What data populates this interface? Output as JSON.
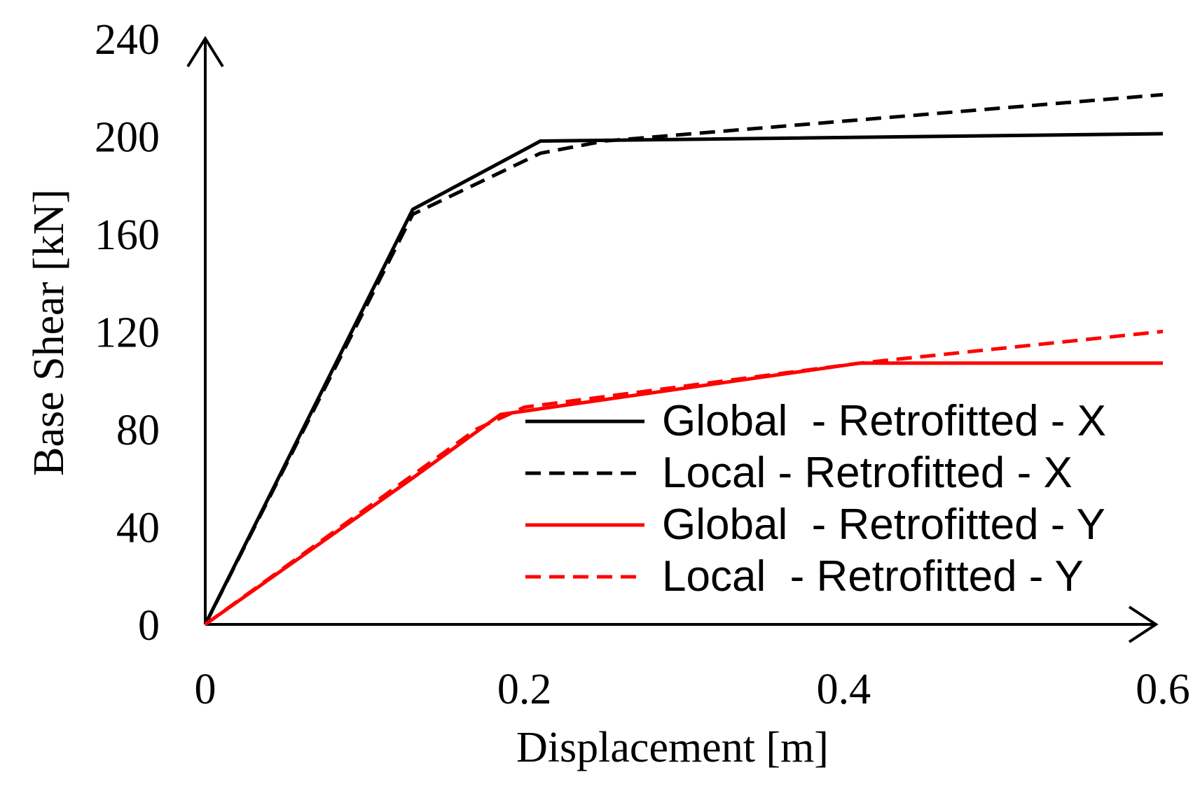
{
  "chart_data": {
    "type": "line",
    "xlabel": "Displacement [m]",
    "ylabel": "Base Shear [kN]",
    "xlim": [
      0,
      0.6
    ],
    "ylim": [
      0,
      240
    ],
    "xticks": [
      "0",
      "0.2",
      "0.4",
      "0.6"
    ],
    "yticks": [
      "0",
      "40",
      "80",
      "120",
      "160",
      "200",
      "240"
    ],
    "grid": false,
    "legend_position": "bottom-right",
    "series": [
      {
        "name": "Global  - Retrofitted - X",
        "color": "#000000",
        "dash": "solid",
        "points": [
          [
            0,
            0
          ],
          [
            0.13,
            170
          ],
          [
            0.21,
            198
          ],
          [
            0.6,
            201
          ]
        ]
      },
      {
        "name": "Local - Retrofitted - X",
        "color": "#000000",
        "dash": "dashed",
        "points": [
          [
            0,
            0
          ],
          [
            0.13,
            168
          ],
          [
            0.21,
            193
          ],
          [
            0.25,
            198
          ],
          [
            0.6,
            217
          ]
        ]
      },
      {
        "name": "Global  - Retrofitted - Y",
        "color": "#ff0000",
        "dash": "solid",
        "points": [
          [
            0,
            0
          ],
          [
            0.13,
            60
          ],
          [
            0.185,
            86
          ],
          [
            0.41,
            107
          ],
          [
            0.6,
            107
          ]
        ]
      },
      {
        "name": "Local  - Retrofitted - Y",
        "color": "#ff0000",
        "dash": "dashed",
        "points": [
          [
            0,
            0
          ],
          [
            0.17,
            80
          ],
          [
            0.2,
            89
          ],
          [
            0.41,
            107
          ],
          [
            0.6,
            120
          ]
        ]
      }
    ]
  }
}
